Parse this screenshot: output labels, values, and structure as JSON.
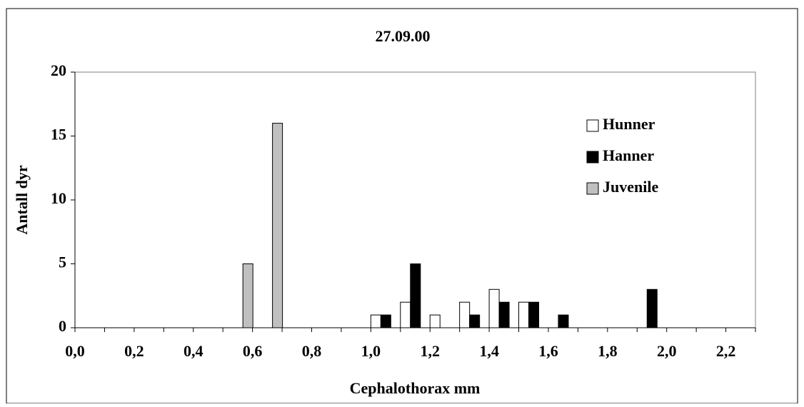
{
  "chart_data": {
    "type": "bar",
    "title": "27.09.00",
    "x_label": "Cephalothorax mm",
    "y_label": "Antall dyr",
    "categories": [
      "0,0",
      null,
      "0,2",
      null,
      "0,4",
      null,
      "0,6",
      null,
      "0,8",
      null,
      "1,0",
      null,
      "1,2",
      null,
      "1,4",
      null,
      "1,6",
      null,
      "1,8",
      null,
      "2,0",
      null,
      "2,2"
    ],
    "series": [
      {
        "name": "Hunner",
        "color": "#ffffff",
        "values": [
          0,
          0,
          0,
          0,
          0,
          0,
          0,
          0,
          0,
          0,
          1,
          2,
          1,
          2,
          3,
          2,
          0,
          0,
          0,
          0,
          0,
          0,
          0
        ]
      },
      {
        "name": "Hanner",
        "color": "#000000",
        "values": [
          0,
          0,
          0,
          0,
          0,
          0,
          0,
          0,
          0,
          0,
          1,
          5,
          0,
          1,
          2,
          2,
          1,
          0,
          0,
          3,
          0,
          0,
          0
        ]
      },
      {
        "name": "Juvenile",
        "color": "#c0c0c0",
        "values": [
          0,
          0,
          0,
          0,
          0,
          5,
          16,
          0,
          0,
          0,
          0,
          0,
          0,
          0,
          0,
          0,
          0,
          0,
          0,
          0,
          0,
          0,
          0
        ]
      }
    ],
    "ylim": [
      0,
      20
    ],
    "yticks": [
      0,
      5,
      10,
      15,
      20
    ],
    "legend": "right"
  }
}
